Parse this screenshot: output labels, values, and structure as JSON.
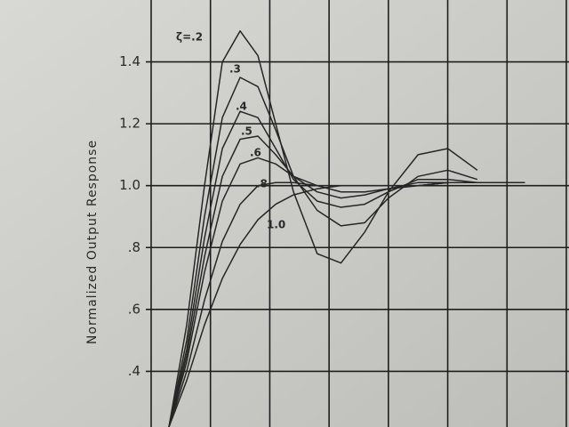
{
  "chart_data": {
    "type": "line",
    "y_label": "Normalized Output Response",
    "x": [
      0.3,
      0.6,
      0.9,
      1.2,
      1.5,
      1.8,
      2.1,
      2.4,
      2.8,
      3.2,
      3.6,
      4.0,
      4.5,
      5.0,
      5.5,
      6.0,
      6.3
    ],
    "series": [
      {
        "name": "ζ=.2",
        "color": "#262626",
        "values": [
          0.22,
          0.55,
          1.0,
          1.4,
          1.5,
          1.42,
          1.2,
          0.98,
          0.78,
          0.75,
          0.85,
          0.98,
          1.1,
          1.12,
          1.05,
          null,
          null
        ]
      },
      {
        "name": ".3",
        "color": "#262626",
        "values": [
          0.22,
          0.5,
          0.9,
          1.22,
          1.35,
          1.32,
          1.18,
          1.03,
          0.92,
          0.87,
          0.88,
          0.96,
          1.03,
          1.05,
          1.02,
          null,
          null
        ]
      },
      {
        "name": ".4",
        "color": "#262626",
        "values": [
          0.22,
          0.47,
          0.83,
          1.12,
          1.24,
          1.22,
          1.12,
          1.02,
          0.95,
          0.93,
          0.94,
          0.98,
          1.02,
          1.02,
          1.01,
          1.01,
          1.01
        ]
      },
      {
        "name": ".5",
        "color": "#262626",
        "values": [
          0.22,
          0.45,
          0.77,
          1.03,
          1.15,
          1.16,
          1.1,
          1.03,
          0.98,
          0.96,
          0.97,
          0.99,
          1.01,
          1.01,
          1.01,
          1.01,
          1.01
        ]
      },
      {
        "name": ".6",
        "color": "#262626",
        "values": [
          0.22,
          0.43,
          0.72,
          0.95,
          1.07,
          1.09,
          1.07,
          1.03,
          1.0,
          0.98,
          0.98,
          0.99,
          1.0,
          1.01,
          1.01,
          1.01,
          1.01
        ]
      },
      {
        "name": ".8",
        "color": "#262626",
        "values": [
          0.22,
          0.4,
          0.63,
          0.82,
          0.94,
          1.0,
          1.01,
          1.01,
          1.0,
          1.0,
          1.0,
          1.0,
          1.0,
          1.01,
          1.01,
          1.01,
          1.01
        ]
      },
      {
        "name": "1.0",
        "color": "#262626",
        "values": [
          0.22,
          0.37,
          0.55,
          0.7,
          0.81,
          0.89,
          0.94,
          0.97,
          0.99,
          1.0,
          1.0,
          1.0,
          1.0,
          1.01,
          1.01,
          1.01,
          1.01
        ]
      }
    ],
    "xlim": [
      0,
      7
    ],
    "xticks": [
      0,
      1,
      2,
      3,
      4,
      5,
      6,
      7
    ],
    "ylim": [
      0.22,
      1.6
    ],
    "yticks": [
      {
        "value": 0.4,
        "label": ".4"
      },
      {
        "value": 0.6,
        "label": ".6"
      },
      {
        "value": 0.8,
        "label": ".8"
      },
      {
        "value": 1,
        "label": "1.0"
      },
      1.2,
      1.4
    ],
    "grid": true
  }
}
